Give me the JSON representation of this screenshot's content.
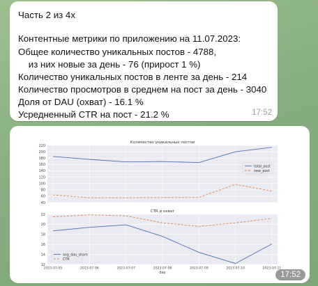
{
  "message1": {
    "lines": [
      "Часть 2 из 4х",
      "",
      "Контентные метрики по приложению на 11.07.2023:",
      "Общее количество уникальных постов - 4788,",
      "    из них новые за день - 76 (прирост 1 %)",
      "Количество уникальных постов в ленте за день - 214",
      "Количество просмотров в среднем на пост за день - 3040",
      "Доля от DAU (охват) - 16.1 %",
      "Усредненный CTR на пост - 21.2 %"
    ],
    "time": "17:52"
  },
  "message2": {
    "time": "17:52"
  },
  "chart_data": [
    {
      "type": "line",
      "title": "Количество уникальных постов",
      "x": [
        "2023-07-05",
        "2023-07-06",
        "2023-07-07",
        "2023-07-08",
        "2023-07-09",
        "2023-07-10",
        "2023-07-11"
      ],
      "ylim": [
        40,
        220
      ],
      "yticks": [
        40,
        60,
        80,
        100,
        120,
        140,
        160,
        180,
        200,
        220
      ],
      "series": [
        {
          "name": "total_post",
          "color": "#4c72b0",
          "dash": "",
          "values": [
            185,
            176,
            168,
            169,
            166,
            200,
            214
          ]
        },
        {
          "name": "new_post",
          "color": "#dd8452",
          "dash": "3,2",
          "values": [
            64,
            55,
            55,
            56,
            56,
            97,
            76
          ]
        }
      ],
      "legend": "center-right",
      "grid": true
    },
    {
      "type": "line",
      "title": "CTR и охват",
      "xlabel": "day",
      "x": [
        "2023-07-05",
        "2023-07-06",
        "2023-07-07",
        "2023-07-08",
        "2023-07-09",
        "2023-07-10",
        "2023-07-11"
      ],
      "xticks": [
        "2023-07-05",
        "2023-07-06",
        "2023-07-07",
        "2023-07-08",
        "2023-07-09",
        "2023-07-10",
        "2023-07-11"
      ],
      "ylim": [
        12,
        22
      ],
      "yticks": [
        12,
        14,
        16,
        18,
        20,
        22
      ],
      "series": [
        {
          "name": "avg_dau_share",
          "color": "#4c72b0",
          "dash": "",
          "values": [
            18.7,
            19.4,
            19.9,
            17.6,
            14.4,
            12.2,
            16.1
          ]
        },
        {
          "name": "CTR",
          "color": "#dd8452",
          "dash": "3,2",
          "values": [
            21.5,
            21.9,
            21.7,
            20.3,
            19.6,
            20.3,
            21.2
          ]
        }
      ],
      "legend": "bottom-left",
      "grid": true
    }
  ]
}
